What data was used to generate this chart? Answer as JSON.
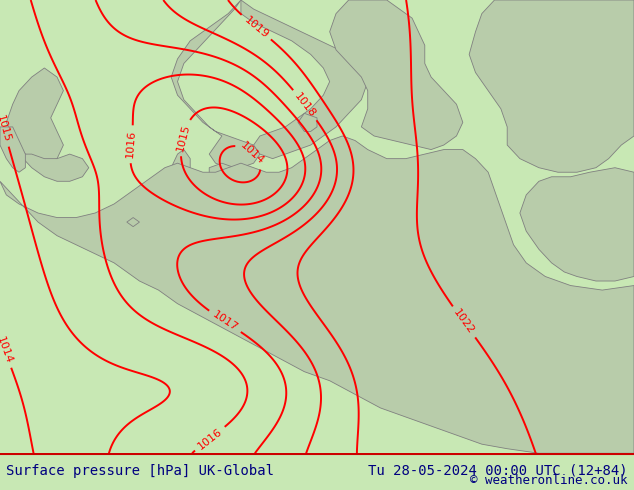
{
  "title_left": "Surface pressure [hPa] UK-Global",
  "title_right": "Tu 28-05-2024 00:00 UTC (12+84)",
  "copyright": "© weatheronline.co.uk",
  "bg_color": "#c8e8b4",
  "land_color": "#b8ccaa",
  "sea_light": "#d0e8c0",
  "contour_color": "#ff0000",
  "coast_color": "#808080",
  "footer_bg": "#ffffff",
  "footer_text_color": "#000080",
  "contour_linewidth": 1.4,
  "label_fontsize": 8,
  "footer_fontsize": 10
}
